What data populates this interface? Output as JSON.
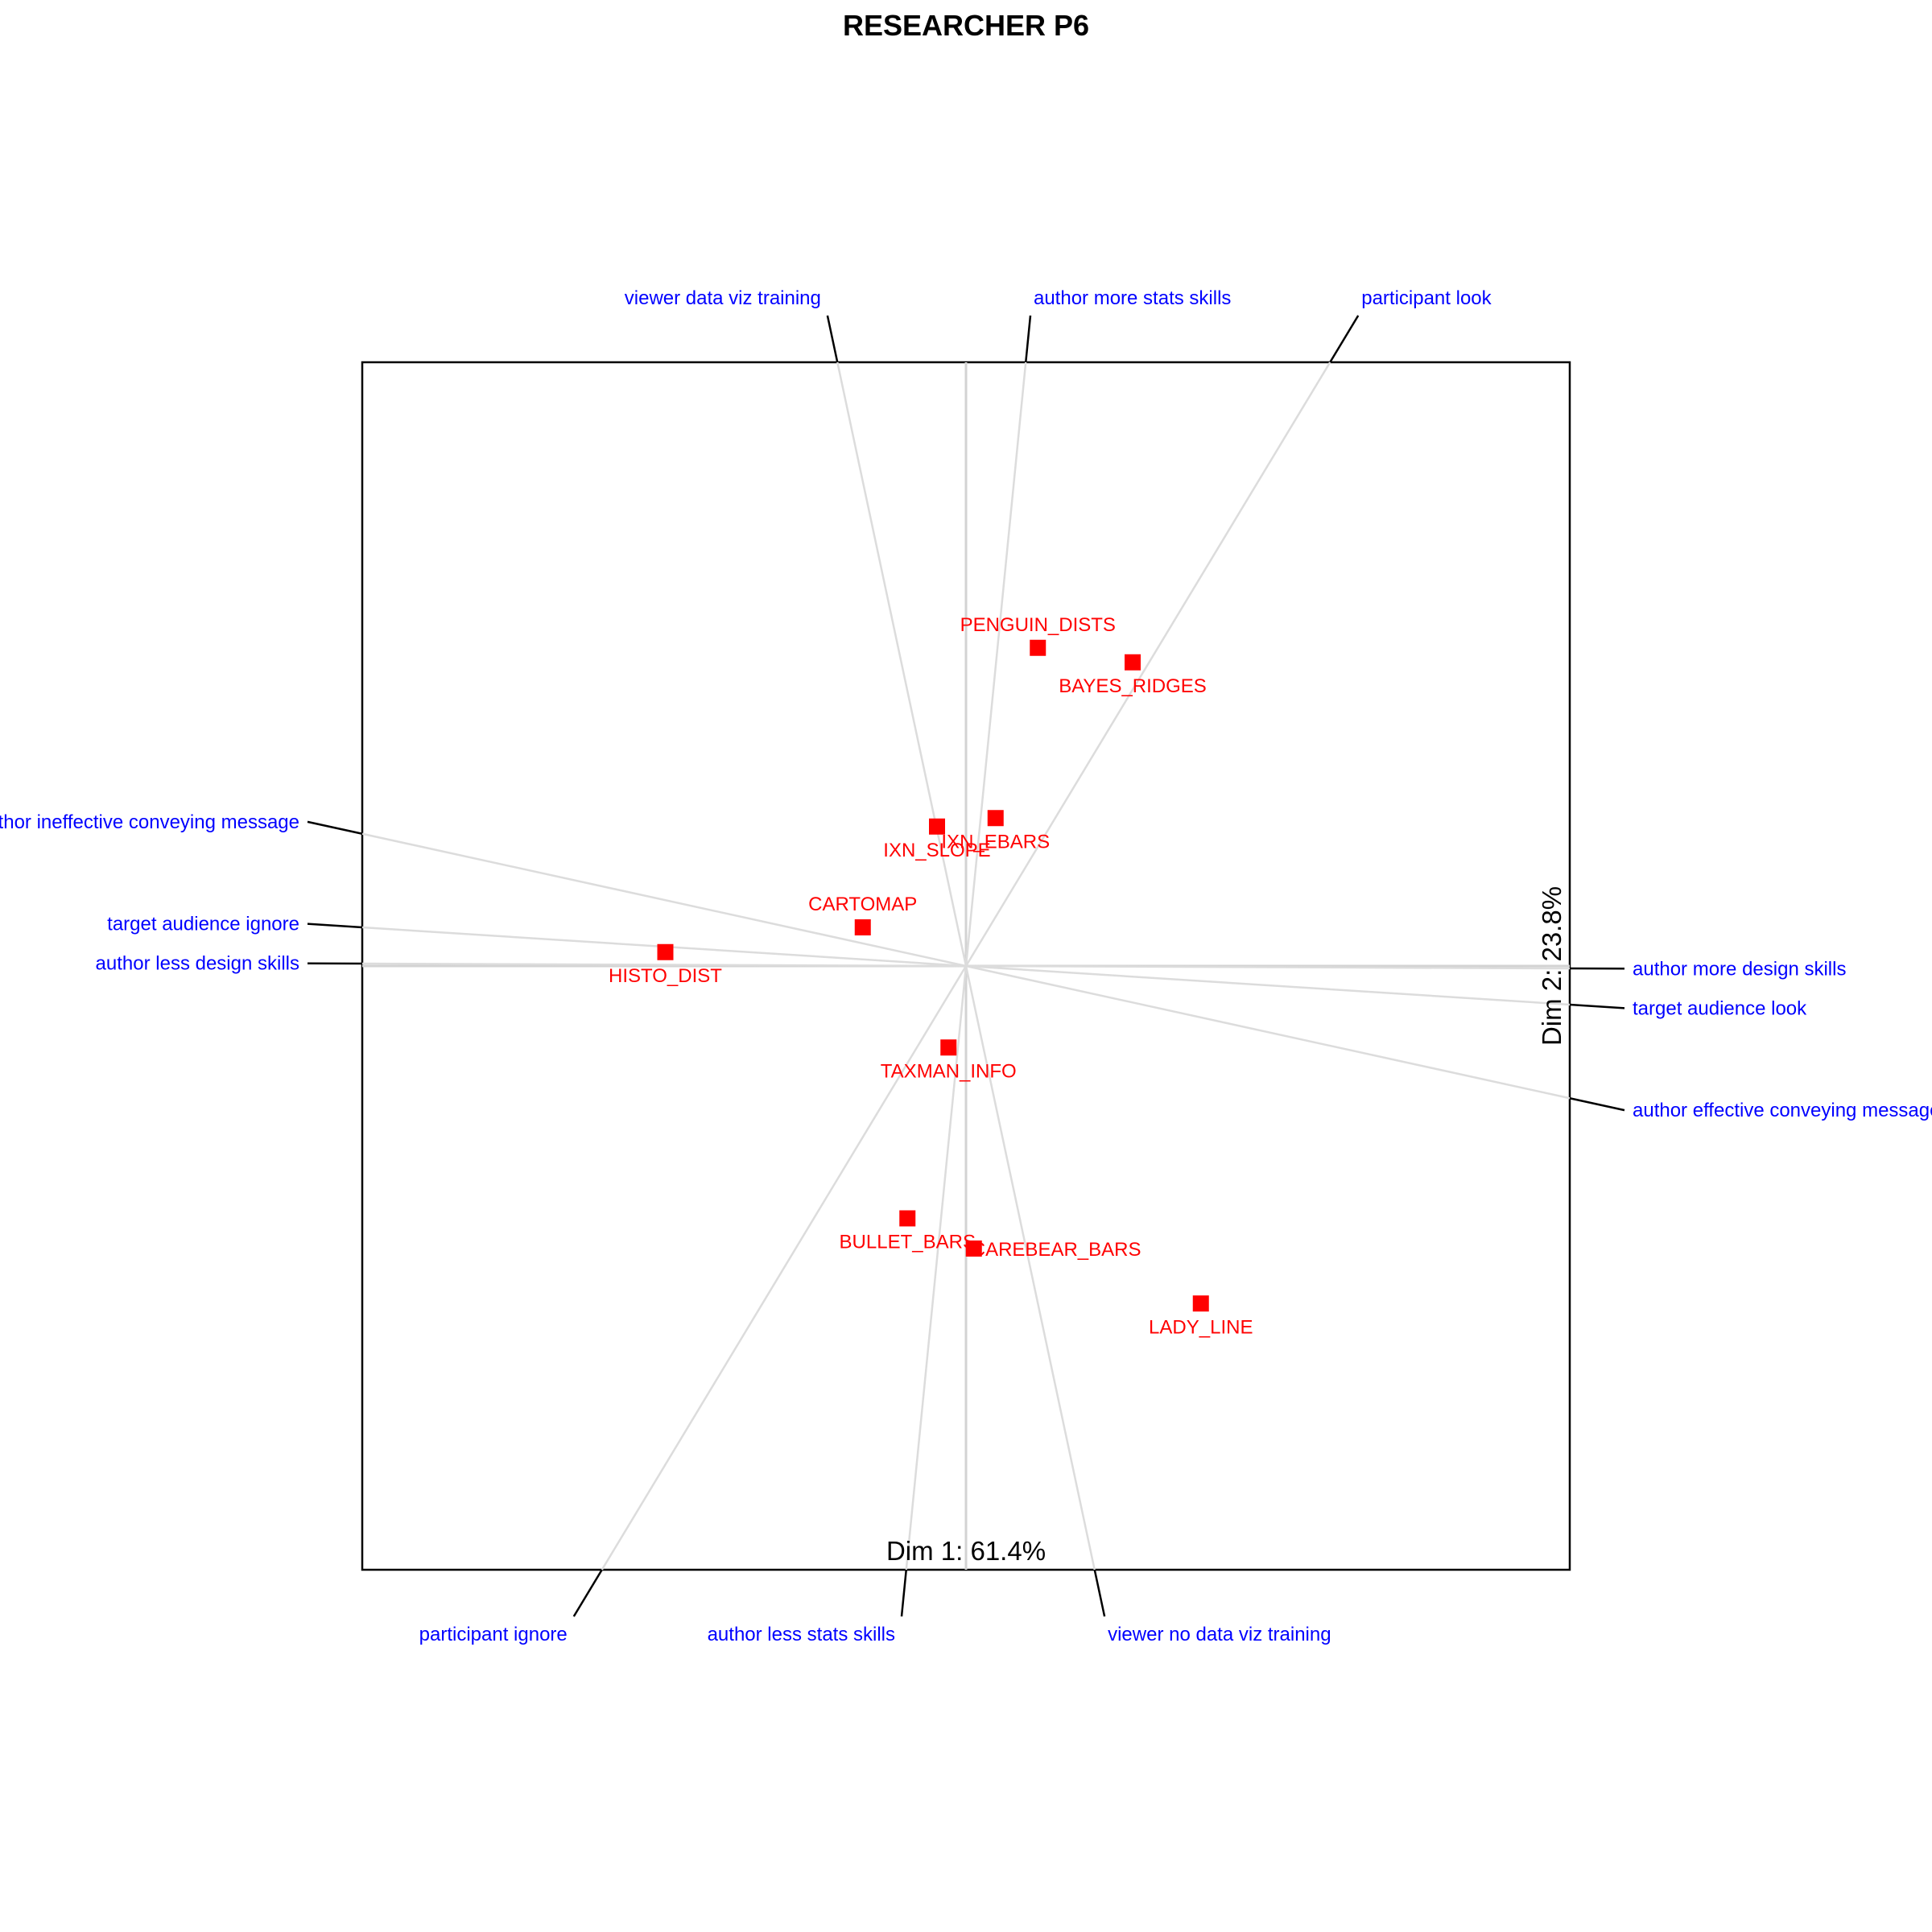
{
  "chart_data": {
    "type": "scatter",
    "title": "RESEARCHER P6",
    "xlabel": "Dim 1: 61.4%",
    "ylabel": "Dim 2: 23.8%",
    "xlim": [
      -1,
      1
    ],
    "ylim": [
      -1,
      1
    ],
    "grid": false,
    "colors": {
      "elements": "#ff0000",
      "constructs": "#0000ff",
      "axes": "#d3d3d3",
      "construct_lines": "#dcdcdc",
      "frame": "#000000"
    },
    "elements": [
      {
        "name": "PENGUIN_DISTS",
        "x": 0.119,
        "y": 0.527,
        "label_pos": "above"
      },
      {
        "name": "BAYES_RIDGES",
        "x": 0.276,
        "y": 0.503,
        "label_pos": "below"
      },
      {
        "name": "IXN_SLOPE",
        "x": -0.048,
        "y": 0.231,
        "label_pos": "below"
      },
      {
        "name": "IXN_EBARS",
        "x": 0.049,
        "y": 0.245,
        "label_pos": "below"
      },
      {
        "name": "CARTOMAP",
        "x": -0.171,
        "y": 0.064,
        "label_pos": "above"
      },
      {
        "name": "HISTO_DIST",
        "x": -0.498,
        "y": 0.023,
        "label_pos": "below"
      },
      {
        "name": "TAXMAN_INFO",
        "x": -0.029,
        "y": -0.135,
        "label_pos": "below"
      },
      {
        "name": "BULLET_BARS",
        "x": -0.097,
        "y": -0.418,
        "label_pos": "below"
      },
      {
        "name": "CAREBEAR_BARS",
        "x": 0.013,
        "y": -0.468,
        "label_pos": "right"
      },
      {
        "name": "LADY_LINE",
        "x": 0.389,
        "y": -0.559,
        "label_pos": "below"
      }
    ],
    "constructs": [
      {
        "name": "viewer data viz training",
        "x": -0.213,
        "y": 1.0,
        "side": "top"
      },
      {
        "name": "author more stats skills",
        "x": 0.099,
        "y": 1.0,
        "side": "top"
      },
      {
        "name": "participant look",
        "x": 0.603,
        "y": 1.0,
        "side": "top"
      },
      {
        "name": "author ineffective conveying message",
        "x": -1.0,
        "y": 0.219,
        "side": "left"
      },
      {
        "name": "target audience ignore",
        "x": -1.0,
        "y": 0.064,
        "side": "left"
      },
      {
        "name": "author  less design skills",
        "x": -1.0,
        "y": 0.004,
        "side": "left"
      },
      {
        "name": "author more design skills",
        "x": 1.0,
        "y": -0.004,
        "side": "right"
      },
      {
        "name": "target audience look",
        "x": 1.0,
        "y": -0.064,
        "side": "right"
      },
      {
        "name": "author effective  conveying message",
        "x": 1.0,
        "y": -0.219,
        "side": "right"
      },
      {
        "name": "participant ignore",
        "x": -0.603,
        "y": -1.0,
        "side": "bottom"
      },
      {
        "name": "author  less stats skills",
        "x": -0.099,
        "y": -1.0,
        "side": "bottom"
      },
      {
        "name": "viewer no data viz training",
        "x": 0.213,
        "y": -1.0,
        "side": "bottom"
      }
    ]
  }
}
